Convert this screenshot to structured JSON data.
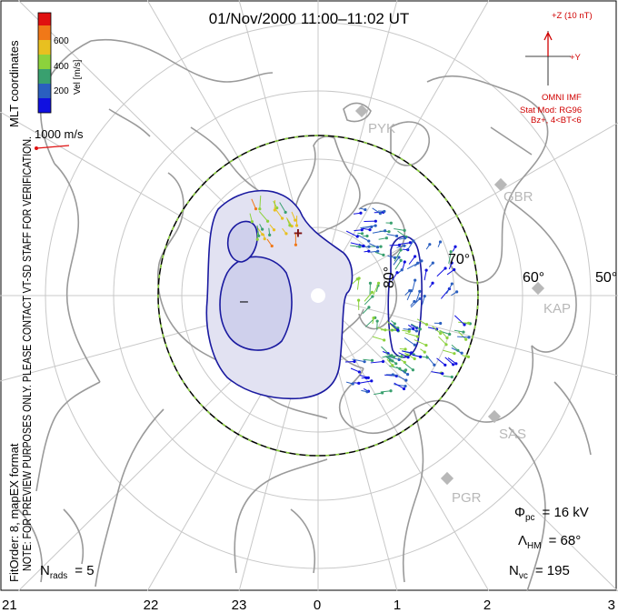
{
  "title": "01/Nov/2000 11:00–11:02 UT",
  "colorbar": {
    "label": "Vel [m/s]",
    "ticks": [
      "600",
      "400",
      "200"
    ],
    "colors": [
      "#1010e0",
      "#2a5fc0",
      "#39a06f",
      "#8cd23c",
      "#e8c020",
      "#f07818",
      "#e01010"
    ]
  },
  "velocity_ref": {
    "label": "1000 m/s",
    "color": "#e01010"
  },
  "imf": {
    "z_label": "+Z (10 nT)",
    "y_label": "+Y",
    "source": "OMNI IMF",
    "model": "Stat Mod: RG96",
    "condition": "Bz+, 4<BT<6",
    "color": "#d00000"
  },
  "side_text": {
    "mlt": "MLT coordinates",
    "note": "NOTE: FOR PREVIEW PURPOSES ONLY. PLEASE CONTACT VT-SD STAFF FOR VERIFICATION.",
    "fitorder": "FitOrder: 8, mapEX format"
  },
  "lat_labels": [
    "80°",
    "70°",
    "60°",
    "50°"
  ],
  "hour_labels": [
    "21",
    "22",
    "23",
    "0",
    "1",
    "2",
    "3"
  ],
  "sites": [
    "PYK",
    "GBR",
    "KAP",
    "SAS",
    "PGR"
  ],
  "contour": {
    "min_sign": "–",
    "max_sign": "+"
  },
  "stats": {
    "phi_sym": "Φ",
    "phi_sub": "pc",
    "phi_val": "= 16 kV",
    "lam_sym": "Λ",
    "lam_sub": "HM",
    "lam_val": "= 68°",
    "nvc_sym": "N",
    "nvc_sub": "vc",
    "nvc_val": "= 195",
    "nrads_sym": "N",
    "nrads_sub": "rads",
    "nrads_val": "= 5"
  },
  "colors": {
    "grid": "#c8c8c8",
    "coast": "#9a9a9a",
    "contour": "#1a1aa0",
    "fill": "#e2e2f2",
    "fill_inner": "#cfd0ec"
  }
}
